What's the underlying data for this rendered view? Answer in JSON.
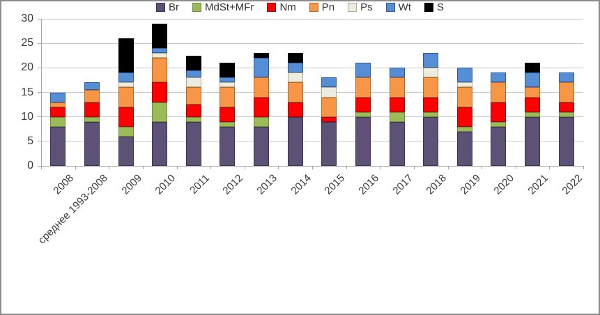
{
  "chart_data": {
    "type": "bar",
    "stacked": true,
    "title": "",
    "xlabel": "",
    "ylabel": "",
    "grid": "horizontal",
    "legend_position": "bottom",
    "ylim": [
      0,
      30
    ],
    "yticks": [
      0,
      5,
      10,
      15,
      20,
      25,
      30
    ],
    "categories": [
      "2008",
      "среднее 1993-2008",
      "2009",
      "2010",
      "2011",
      "2012",
      "2013",
      "2014",
      "2015",
      "2016",
      "2017",
      "2018",
      "2019",
      "2020",
      "2021",
      "2022"
    ],
    "series": [
      {
        "name": "Br",
        "color": "#5d5175",
        "border": "#403155",
        "values": [
          8,
          9,
          6,
          9,
          9,
          8,
          8,
          10,
          9,
          10,
          9,
          10,
          7,
          8,
          10,
          10
        ]
      },
      {
        "name": "MdSt+MFr",
        "color": "#9bbb59",
        "border": "#6e8c3a",
        "values": [
          2,
          1,
          2,
          4,
          1,
          1,
          2,
          0,
          0,
          1,
          2,
          1,
          1,
          1,
          1,
          1
        ]
      },
      {
        "name": "Nm",
        "color": "#fe0000",
        "border": "#9d0a0e",
        "values": [
          2,
          3,
          4,
          4,
          2.5,
          3,
          4,
          3,
          1,
          3,
          3,
          3,
          4,
          4,
          3,
          2
        ]
      },
      {
        "name": "Pn",
        "color": "#f79646",
        "border": "#b66a27",
        "values": [
          1,
          2.5,
          4,
          5,
          3.5,
          4,
          4,
          4,
          4,
          4,
          4,
          4,
          4,
          4,
          2,
          4
        ]
      },
      {
        "name": "Ps",
        "color": "#eeece1",
        "border": "#b3ab83",
        "values": [
          0,
          0,
          1,
          1,
          2,
          1,
          0,
          2,
          2,
          0,
          0,
          2,
          1,
          0,
          0,
          0
        ]
      },
      {
        "name": "Wt",
        "color": "#558ed5",
        "border": "#2f5c9e",
        "values": [
          2,
          1.5,
          2,
          1,
          1.5,
          1,
          4,
          2,
          2,
          3,
          2,
          3,
          3,
          2,
          3,
          2
        ]
      },
      {
        "name": "S",
        "color": "#000000",
        "border": "#000000",
        "values": [
          0,
          0,
          7,
          5,
          3,
          3,
          1,
          2,
          0,
          0,
          0,
          0,
          0,
          0,
          2,
          0
        ]
      }
    ],
    "totals": [
      15,
      17,
      26,
      29,
      22.5,
      21,
      23,
      23,
      18,
      21,
      20,
      23,
      20,
      19,
      21,
      19
    ]
  },
  "style": {
    "grid_color": "#c6c6c6",
    "axis_color": "#a6a6a6",
    "text_color": "#3a3a3a",
    "frame_border": "#8c8c8c",
    "background": "#ffffff"
  }
}
